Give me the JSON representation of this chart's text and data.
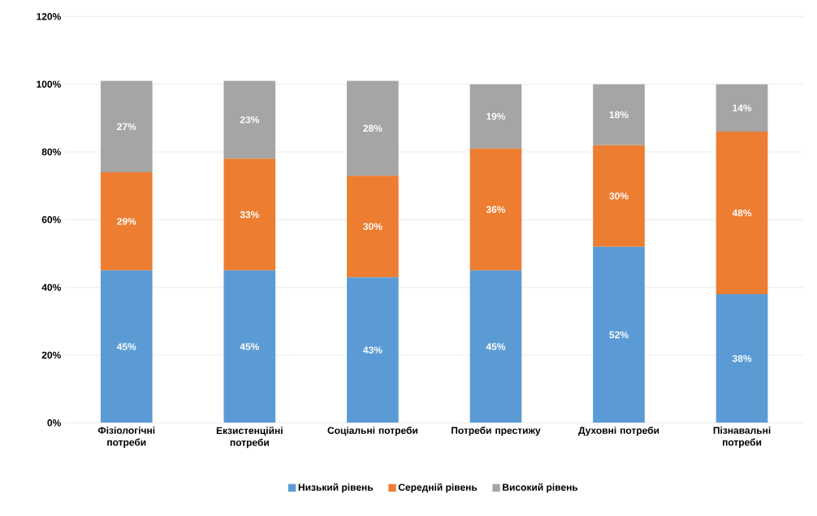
{
  "chart_data": {
    "type": "bar",
    "stacked": true,
    "categories": [
      "Фізіологічні потреби",
      "Екзистенційні потреби",
      "Соціальні потреби",
      "Потреби престижу",
      "Духовні потреби",
      "Пізнавальні потреби"
    ],
    "series": [
      {
        "name": "Низький рівень",
        "color": "#5b9bd5",
        "values": [
          45,
          45,
          43,
          45,
          52,
          38
        ],
        "value_labels": [
          "45%",
          "45%",
          "43%",
          "45%",
          "52%",
          "38%"
        ]
      },
      {
        "name": "Середній рівень",
        "color": "#ed7d31",
        "values": [
          29,
          33,
          30,
          36,
          30,
          48
        ],
        "value_labels": [
          "29%",
          "33%",
          "30%",
          "36%",
          "30%",
          "48%"
        ]
      },
      {
        "name": "Високий рівень",
        "color": "#a5a5a5",
        "values": [
          27,
          23,
          28,
          19,
          18,
          14
        ],
        "value_labels": [
          "27%",
          "23%",
          "28%",
          "19%",
          "18%",
          "14%"
        ]
      }
    ],
    "ylim": [
      0,
      120
    ],
    "yticks": [
      {
        "value": 0,
        "label": "0%"
      },
      {
        "value": 20,
        "label": "20%"
      },
      {
        "value": 40,
        "label": "40%"
      },
      {
        "value": 60,
        "label": "60%"
      },
      {
        "value": 80,
        "label": "80%"
      },
      {
        "value": 100,
        "label": "100%"
      },
      {
        "value": 120,
        "label": "120%"
      }
    ],
    "grid": "y",
    "legend": "bottom"
  }
}
